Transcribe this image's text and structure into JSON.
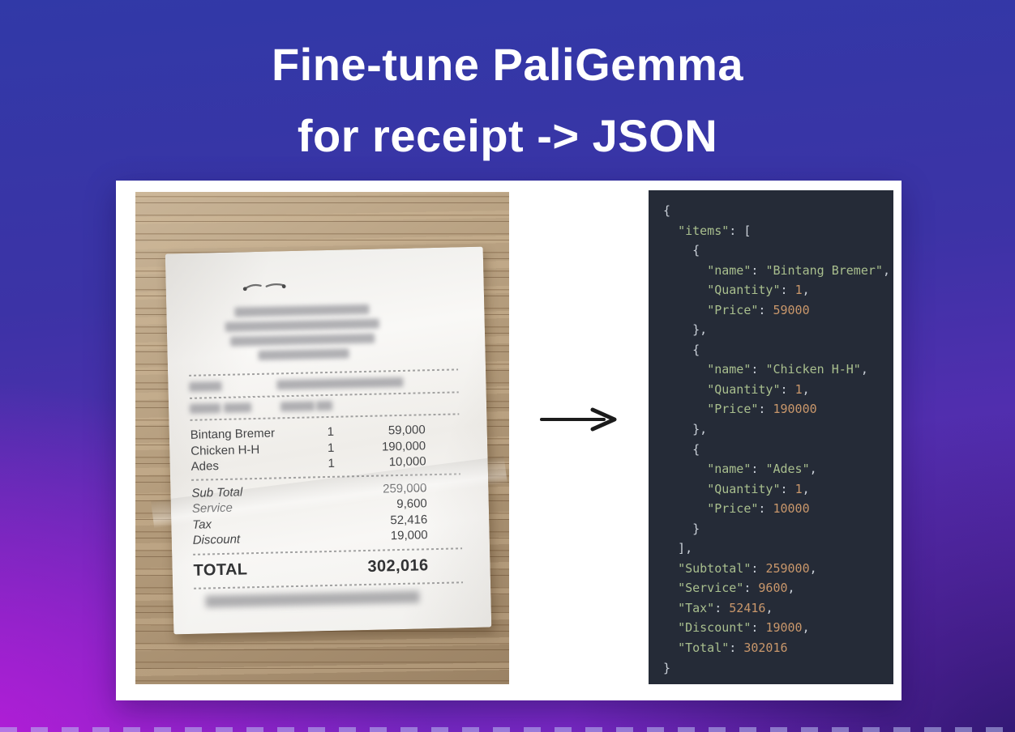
{
  "title": {
    "line1": "Fine-tune PaliGemma",
    "line2": "for receipt -> JSON"
  },
  "receipt": {
    "items": [
      {
        "name": "Bintang Bremer",
        "qty": "1",
        "price": "59,000"
      },
      {
        "name": "Chicken H-H",
        "qty": "1",
        "price": "190,000"
      },
      {
        "name": "Ades",
        "qty": "1",
        "price": "10,000"
      }
    ],
    "summary": [
      {
        "label": "Sub Total",
        "value": "259,000"
      },
      {
        "label": "Service",
        "value": "9,600"
      },
      {
        "label": "Tax",
        "value": "52,416"
      },
      {
        "label": "Discount",
        "value": "19,000"
      }
    ],
    "total_label": "TOTAL",
    "total_value": "302,016"
  },
  "code": {
    "colors": {
      "background": "#252b37",
      "key_string": "#a9bf8e",
      "number": "#c9976b",
      "punctuation": "#ccd2da"
    },
    "lines": [
      [
        [
          "{",
          "p"
        ]
      ],
      [
        [
          "  ",
          "p"
        ],
        [
          "\"items\"",
          "k"
        ],
        [
          ": [",
          "p"
        ]
      ],
      [
        [
          "    {",
          "p"
        ]
      ],
      [
        [
          "      ",
          "p"
        ],
        [
          "\"name\"",
          "k"
        ],
        [
          ": ",
          "p"
        ],
        [
          "\"Bintang Bremer\"",
          "k"
        ],
        [
          ",",
          "p"
        ]
      ],
      [
        [
          "      ",
          "p"
        ],
        [
          "\"Quantity\"",
          "k"
        ],
        [
          ": ",
          "p"
        ],
        [
          "1",
          "n"
        ],
        [
          ",",
          "p"
        ]
      ],
      [
        [
          "      ",
          "p"
        ],
        [
          "\"Price\"",
          "k"
        ],
        [
          ": ",
          "p"
        ],
        [
          "59000",
          "n"
        ]
      ],
      [
        [
          "    },",
          "p"
        ]
      ],
      [
        [
          "    {",
          "p"
        ]
      ],
      [
        [
          "      ",
          "p"
        ],
        [
          "\"name\"",
          "k"
        ],
        [
          ": ",
          "p"
        ],
        [
          "\"Chicken H-H\"",
          "k"
        ],
        [
          ",",
          "p"
        ]
      ],
      [
        [
          "      ",
          "p"
        ],
        [
          "\"Quantity\"",
          "k"
        ],
        [
          ": ",
          "p"
        ],
        [
          "1",
          "n"
        ],
        [
          ",",
          "p"
        ]
      ],
      [
        [
          "      ",
          "p"
        ],
        [
          "\"Price\"",
          "k"
        ],
        [
          ": ",
          "p"
        ],
        [
          "190000",
          "n"
        ]
      ],
      [
        [
          "    },",
          "p"
        ]
      ],
      [
        [
          "    {",
          "p"
        ]
      ],
      [
        [
          "      ",
          "p"
        ],
        [
          "\"name\"",
          "k"
        ],
        [
          ": ",
          "p"
        ],
        [
          "\"Ades\"",
          "k"
        ],
        [
          ",",
          "p"
        ]
      ],
      [
        [
          "      ",
          "p"
        ],
        [
          "\"Quantity\"",
          "k"
        ],
        [
          ": ",
          "p"
        ],
        [
          "1",
          "n"
        ],
        [
          ",",
          "p"
        ]
      ],
      [
        [
          "      ",
          "p"
        ],
        [
          "\"Price\"",
          "k"
        ],
        [
          ": ",
          "p"
        ],
        [
          "10000",
          "n"
        ]
      ],
      [
        [
          "    }",
          "p"
        ]
      ],
      [
        [
          "  ],",
          "p"
        ]
      ],
      [
        [
          "  ",
          "p"
        ],
        [
          "\"Subtotal\"",
          "k"
        ],
        [
          ": ",
          "p"
        ],
        [
          "259000",
          "n"
        ],
        [
          ",",
          "p"
        ]
      ],
      [
        [
          "  ",
          "p"
        ],
        [
          "\"Service\"",
          "k"
        ],
        [
          ": ",
          "p"
        ],
        [
          "9600",
          "n"
        ],
        [
          ",",
          "p"
        ]
      ],
      [
        [
          "  ",
          "p"
        ],
        [
          "\"Tax\"",
          "k"
        ],
        [
          ": ",
          "p"
        ],
        [
          "52416",
          "n"
        ],
        [
          ",",
          "p"
        ]
      ],
      [
        [
          "  ",
          "p"
        ],
        [
          "\"Discount\"",
          "k"
        ],
        [
          ": ",
          "p"
        ],
        [
          "19000",
          "n"
        ],
        [
          ",",
          "p"
        ]
      ],
      [
        [
          "  ",
          "p"
        ],
        [
          "\"Total\"",
          "k"
        ],
        [
          ": ",
          "p"
        ],
        [
          "302016",
          "n"
        ]
      ],
      [
        [
          "}",
          "p"
        ]
      ]
    ]
  },
  "theme": {
    "background_top": "#3139a7",
    "background_bottom_left": "#ba1cda",
    "background_bottom_right": "#181458",
    "card": "#ffffff"
  }
}
